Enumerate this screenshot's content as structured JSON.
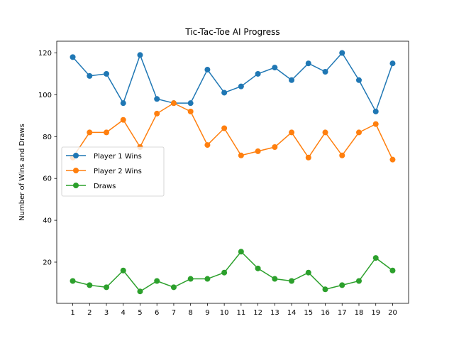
{
  "chart_data": {
    "type": "line",
    "title": "Tic-Tac-Toe AI Progress",
    "xlabel": "",
    "ylabel": "Number of Wins and Draws",
    "x": [
      1,
      2,
      3,
      4,
      5,
      6,
      7,
      8,
      9,
      10,
      11,
      12,
      13,
      14,
      15,
      16,
      17,
      18,
      19,
      20
    ],
    "xlim": [
      0.05,
      20.95
    ],
    "ylim": [
      0.3,
      125.6
    ],
    "yticks": [
      20,
      40,
      60,
      80,
      100,
      120
    ],
    "grid": false,
    "legend_position": "center-left",
    "series": [
      {
        "name": "Player 1 Wins",
        "color": "#1f77b4",
        "values": [
          118,
          109,
          110,
          96,
          119,
          98,
          96,
          96,
          112,
          101,
          104,
          110,
          113,
          107,
          115,
          111,
          120,
          107,
          92,
          115
        ]
      },
      {
        "name": "Player 2 Wins",
        "color": "#ff7f0e",
        "values": [
          70,
          82,
          82,
          88,
          75,
          91,
          96,
          92,
          76,
          84,
          71,
          73,
          75,
          82,
          70,
          82,
          71,
          82,
          86,
          69
        ]
      },
      {
        "name": "Draws",
        "color": "#2ca02c",
        "values": [
          11,
          9,
          8,
          16,
          6,
          11,
          8,
          12,
          12,
          15,
          25,
          17,
          12,
          11,
          15,
          7,
          9,
          11,
          22,
          16
        ]
      }
    ]
  }
}
